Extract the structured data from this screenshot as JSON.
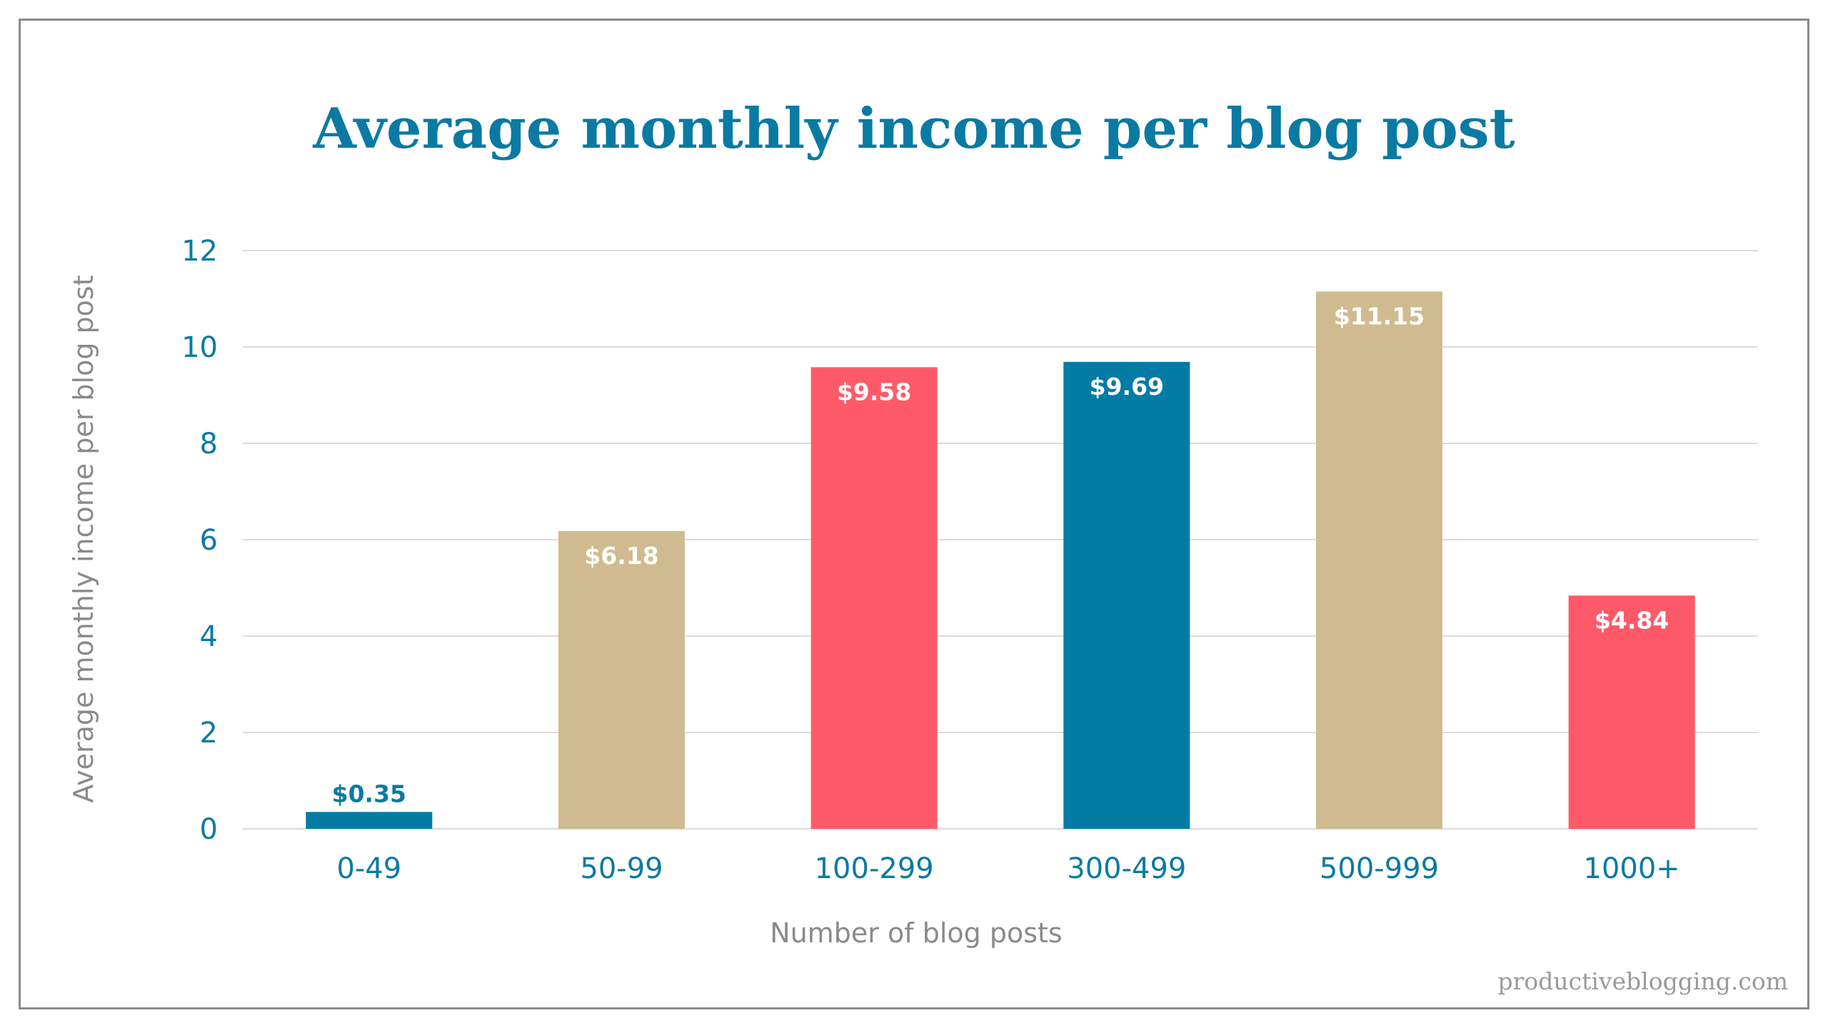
{
  "chart_data": {
    "type": "bar",
    "title": "Average monthly income per blog post",
    "xlabel": "Number of blog posts",
    "ylabel": "Average monthly income per blog post",
    "categories": [
      "0-49",
      "50-99",
      "100-299",
      "300-499",
      "500-999",
      "1000+"
    ],
    "values": [
      0.35,
      6.18,
      9.58,
      9.69,
      11.15,
      4.84
    ],
    "data_labels": [
      "$0.35",
      "$6.18",
      "$9.58",
      "$9.69",
      "$11.15",
      "$4.84"
    ],
    "bar_colors": [
      "#037ba5",
      "#cfbb8f",
      "#ff5a69",
      "#037ba5",
      "#cfbb8f",
      "#ff5a69"
    ],
    "ylim": [
      0,
      12
    ],
    "yticks": [
      0,
      2,
      4,
      6,
      8,
      10,
      12
    ],
    "grid": true,
    "legend": "none"
  },
  "watermark": "productiveblogging.com",
  "colors": {
    "title": "#0a7aa3",
    "tick_text": "#0a7aa3",
    "axis_title": "#8a8a8a",
    "grid": "#dcdcdc",
    "label_inside": "#ffffff",
    "label_outside": "#0a7aa3"
  }
}
